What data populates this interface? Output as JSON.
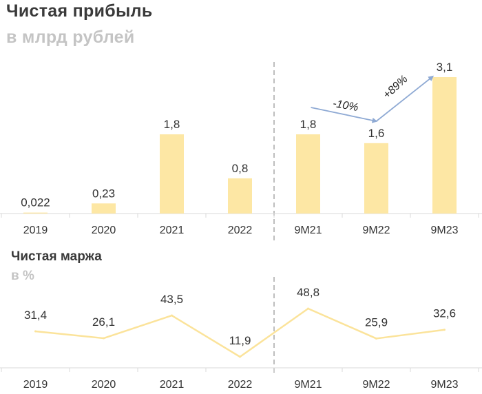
{
  "header": {
    "title": "Чистая прибыль",
    "subtitle": "в млрд рублей"
  },
  "margin_header": {
    "title": "Чистая маржа",
    "subtitle": "в %"
  },
  "colors": {
    "bar": "#fde7a4",
    "line": "#fbe39a",
    "arrow": "#8faad4",
    "divider": "#bdbdbd",
    "axis": "#d9d9d9"
  },
  "chart_data": [
    {
      "type": "bar",
      "title": "Чистая прибыль",
      "subtitle": "в млрд рублей",
      "categories": [
        "2019",
        "2020",
        "2021",
        "2022",
        "9M21",
        "9M22",
        "9M23"
      ],
      "values": [
        0.022,
        0.23,
        1.8,
        0.8,
        1.8,
        1.6,
        3.1
      ],
      "labels": [
        "0,022",
        "0,23",
        "1,8",
        "0,8",
        "1,8",
        "1,6",
        "3,1"
      ],
      "ylim": [
        0,
        3.1
      ],
      "divider_after": "2022",
      "annotations": [
        {
          "text": "-10%",
          "from": "9M21",
          "to": "9M22"
        },
        {
          "text": "+89%",
          "from": "9M22",
          "to": "9M23"
        }
      ]
    },
    {
      "type": "line",
      "title": "Чистая маржа",
      "subtitle": "в %",
      "categories": [
        "2019",
        "2020",
        "2021",
        "2022",
        "9M21",
        "9M22",
        "9M23"
      ],
      "values": [
        31.4,
        26.1,
        43.5,
        11.9,
        48.8,
        25.9,
        32.6
      ],
      "labels": [
        "31,4",
        "26,1",
        "43,5",
        "11,9",
        "48,8",
        "25,9",
        "32,6"
      ],
      "ylim": [
        11.9,
        48.8
      ],
      "divider_after": "2022"
    }
  ]
}
